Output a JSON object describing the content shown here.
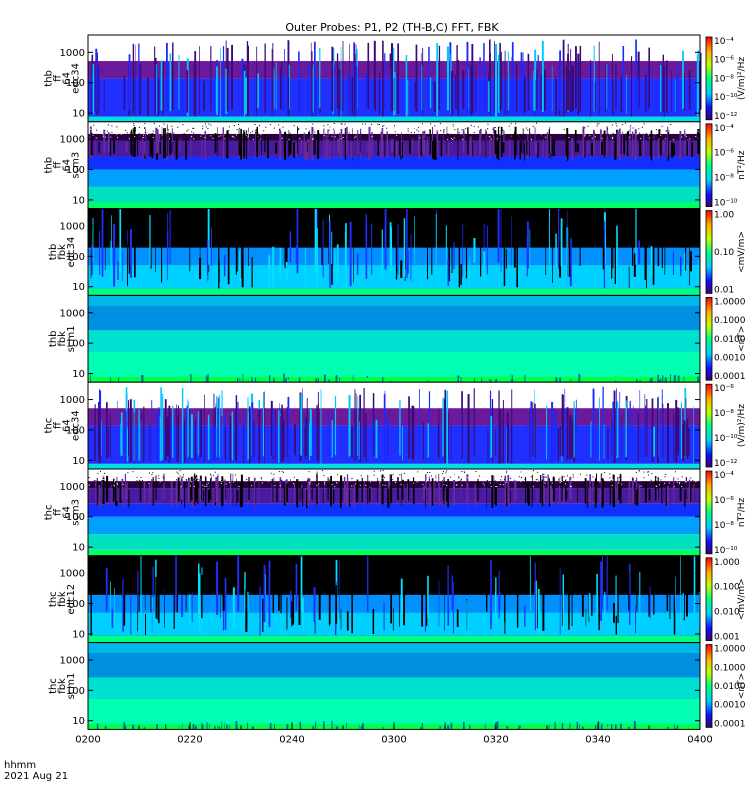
{
  "title": "Outer Probes: P1, P2 (TH-B,C) FFT, FBK",
  "x_axis": {
    "format_label": "hhmm",
    "date_label": "2021 Aug 21",
    "ticks": [
      "0200",
      "0220",
      "0240",
      "0300",
      "0320",
      "0340",
      "0400"
    ]
  },
  "chart_data": [
    {
      "type": "heatmap",
      "panel_label": [
        "thb",
        "ff",
        "64",
        "edc34"
      ],
      "yscale": "log",
      "yticks": [
        "10",
        "100",
        "1000"
      ],
      "colorbar_ticks": [
        "10⁻⁴",
        "10⁻⁶",
        "10⁻⁸",
        "10⁻¹⁰",
        "10⁻¹²"
      ],
      "colorbar_label": "(V/m)²/Hz",
      "background": "white",
      "xlim": [
        "0200",
        "0400"
      ]
    },
    {
      "type": "heatmap",
      "panel_label": [
        "thb",
        "ff",
        "64",
        "scm3"
      ],
      "yscale": "log",
      "yticks": [
        "10",
        "100",
        "1000"
      ],
      "colorbar_ticks": [
        "10⁻⁴",
        "10⁻⁶",
        "10⁻⁸",
        "10⁻¹⁰"
      ],
      "colorbar_label": "nT²/Hz",
      "background": "white",
      "xlim": [
        "0200",
        "0400"
      ]
    },
    {
      "type": "heatmap",
      "panel_label": [
        "thb",
        "fbk",
        "edc34"
      ],
      "yscale": "log",
      "yticks": [
        "10",
        "100",
        "1000"
      ],
      "colorbar_ticks": [
        "1.00",
        "0.10",
        "0.01"
      ],
      "colorbar_label": "<mV/m>",
      "background": "black",
      "xlim": [
        "0200",
        "0400"
      ]
    },
    {
      "type": "heatmap",
      "panel_label": [
        "thb",
        "fbk",
        "scm1"
      ],
      "yscale": "log",
      "yticks": [
        "10",
        "100",
        "1000"
      ],
      "colorbar_ticks": [
        "1.0000",
        "0.1000",
        "0.0100",
        "0.0010",
        "0.0001"
      ],
      "colorbar_label": "<nT>",
      "background": "teal",
      "xlim": [
        "0200",
        "0400"
      ]
    },
    {
      "type": "heatmap",
      "panel_label": [
        "thc",
        "ff",
        "64",
        "edc34"
      ],
      "yscale": "log",
      "yticks": [
        "10",
        "100",
        "1000"
      ],
      "colorbar_ticks": [
        "10⁻⁶",
        "10⁻⁸",
        "10⁻¹⁰",
        "10⁻¹²"
      ],
      "colorbar_label": "(V/m)²/Hz",
      "background": "white",
      "xlim": [
        "0200",
        "0400"
      ]
    },
    {
      "type": "heatmap",
      "panel_label": [
        "thc",
        "ff",
        "64",
        "scm3"
      ],
      "yscale": "log",
      "yticks": [
        "10",
        "100",
        "1000"
      ],
      "colorbar_ticks": [
        "10⁻⁴",
        "10⁻⁶",
        "10⁻⁸",
        "10⁻¹⁰"
      ],
      "colorbar_label": "nT²/Hz",
      "background": "white",
      "xlim": [
        "0200",
        "0400"
      ]
    },
    {
      "type": "heatmap",
      "panel_label": [
        "thc",
        "fbk",
        "edc12"
      ],
      "yscale": "log",
      "yticks": [
        "10",
        "100",
        "1000"
      ],
      "colorbar_ticks": [
        "1.000",
        "0.100",
        "0.010",
        "0.001"
      ],
      "colorbar_label": "<mV/m>",
      "background": "black",
      "xlim": [
        "0200",
        "0400"
      ]
    },
    {
      "type": "heatmap",
      "panel_label": [
        "thc",
        "fbk",
        "scm1"
      ],
      "yscale": "log",
      "yticks": [
        "10",
        "100",
        "1000"
      ],
      "colorbar_ticks": [
        "1.0000",
        "0.1000",
        "0.0100",
        "0.0010",
        "0.0001"
      ],
      "colorbar_label": "<nT>",
      "background": "teal",
      "xlim": [
        "0200",
        "0400"
      ]
    }
  ]
}
